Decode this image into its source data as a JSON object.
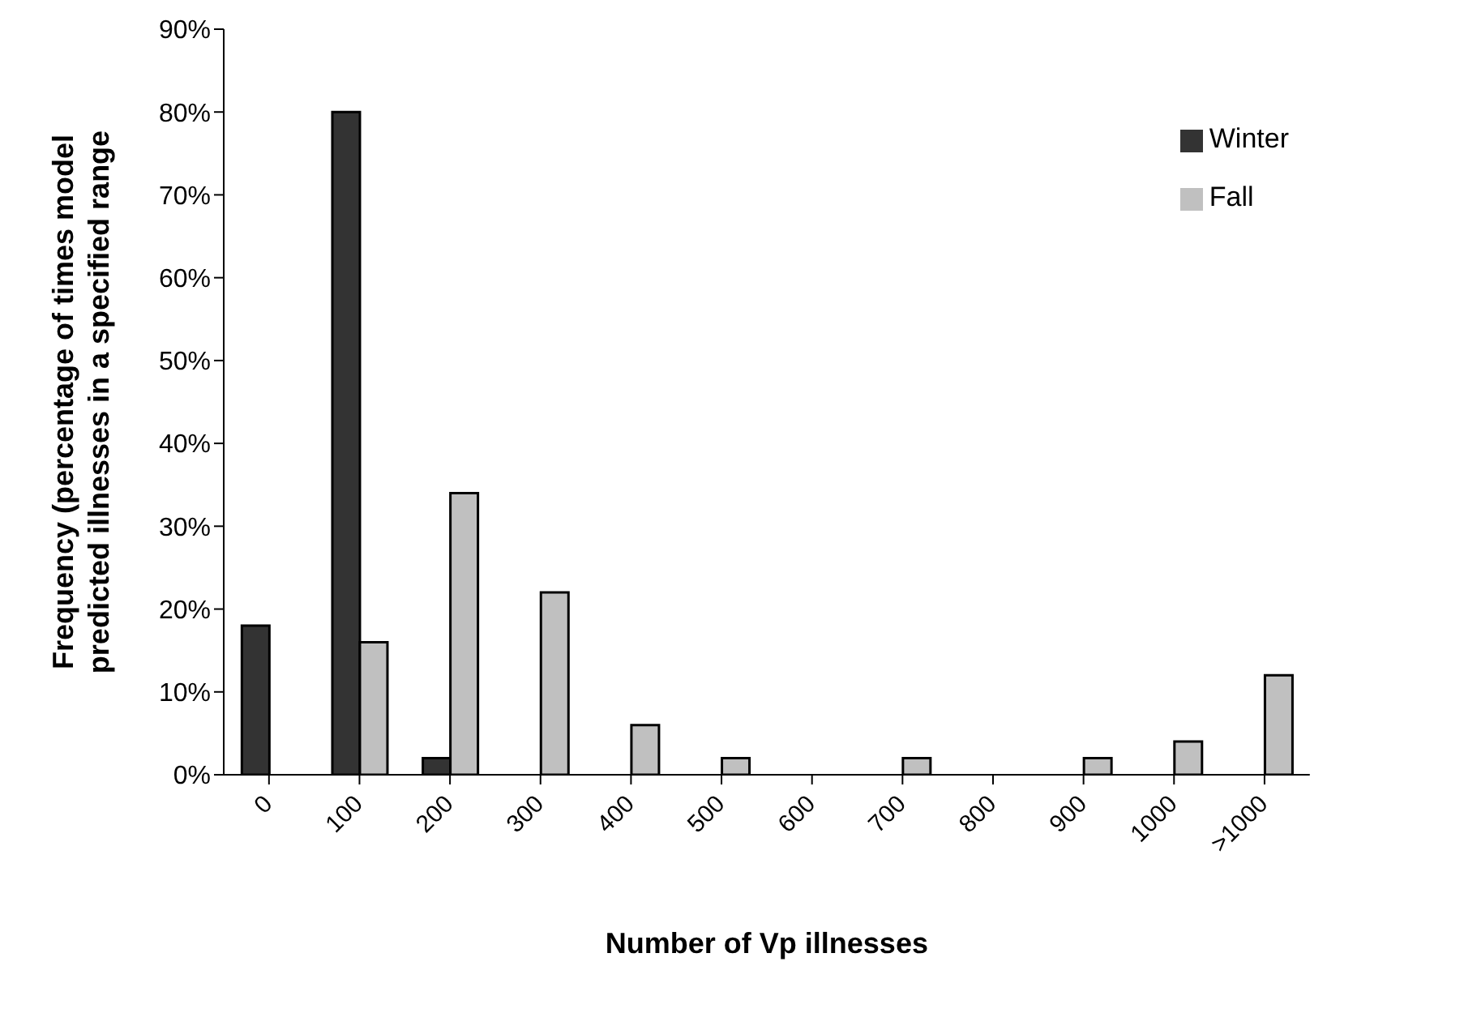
{
  "chart_data": {
    "type": "bar",
    "xlabel": "Number of Vp illnesses",
    "ylabel": "Frequency (percentage of times model\npredicted illnesses in a specified range",
    "categories": [
      "0",
      "100",
      "200",
      "300",
      "400",
      "500",
      "600",
      "700",
      "800",
      "900",
      "1000",
      ">1000"
    ],
    "series": [
      {
        "name": "Winter",
        "color": "#333333",
        "values": [
          18,
          80,
          2,
          0,
          0,
          0,
          0,
          0,
          0,
          0,
          0,
          0
        ]
      },
      {
        "name": "Fall",
        "color": "#c0c0c0",
        "values": [
          0,
          16,
          34,
          22,
          6,
          2,
          0,
          2,
          0,
          2,
          4,
          12
        ]
      }
    ],
    "ylim": [
      0,
      90
    ],
    "yticks": [
      {
        "value": 0,
        "label": "0%"
      },
      {
        "value": 10,
        "label": "10%"
      },
      {
        "value": 20,
        "label": "20%"
      },
      {
        "value": 30,
        "label": "30%"
      },
      {
        "value": 40,
        "label": "40%"
      },
      {
        "value": 50,
        "label": "50%"
      },
      {
        "value": 60,
        "label": "60%"
      },
      {
        "value": 70,
        "label": "70%"
      },
      {
        "value": 80,
        "label": "80%"
      },
      {
        "value": 90,
        "label": "90%"
      }
    ],
    "grid": false,
    "legend": "top right"
  }
}
